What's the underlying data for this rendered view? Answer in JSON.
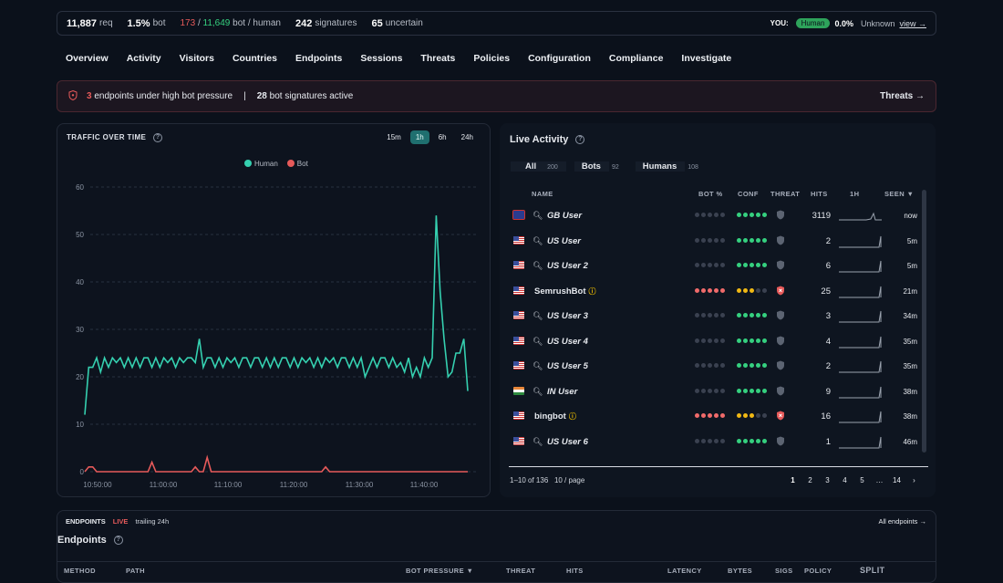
{
  "topbar": {
    "requests": "11,887",
    "requests_label": "req",
    "bot_pct": "1.5%",
    "bot_label": "bot",
    "bot_count": "173",
    "human_count": "11,649",
    "bot_human_label": "bot / human",
    "signatures": "242",
    "signatures_label": "signatures",
    "uncertain": "65",
    "uncertain_label": "uncertain",
    "you_label": "YOU:",
    "you_badge": "Human",
    "you_pct": "0.0%",
    "you_status": "Unknown",
    "view_link": "view →"
  },
  "nav": [
    "Overview",
    "Activity",
    "Visitors",
    "Countries",
    "Endpoints",
    "Sessions",
    "Threats",
    "Policies",
    "Configuration",
    "Compliance",
    "Investigate"
  ],
  "alert": {
    "count": "3",
    "text1": "endpoints under high bot pressure",
    "sep": "|",
    "sig_count": "28",
    "text2": "bot signatures active",
    "link": "Threats →"
  },
  "traffic": {
    "title": "TRAFFIC OVER TIME",
    "timeframes": [
      "15m",
      "1h",
      "6h",
      "24h"
    ],
    "active_timeframe": "1h",
    "legend": [
      "Human",
      "Bot"
    ]
  },
  "chart_data": {
    "type": "line",
    "x_ticks": [
      "10:50:00",
      "11:00:00",
      "11:10:00",
      "11:20:00",
      "11:30:00",
      "11:40:00"
    ],
    "ylim": [
      0,
      60
    ],
    "y_ticks": [
      "0",
      "10",
      "20",
      "30",
      "40",
      "50",
      "60"
    ],
    "grid": true,
    "legend_position": "top-center",
    "series": [
      {
        "name": "Human",
        "color": "#35d0b0",
        "values": [
          12,
          22,
          22,
          24,
          21,
          24,
          22,
          24,
          23,
          24,
          22,
          24,
          22,
          24,
          22,
          24,
          24,
          22,
          24,
          22,
          24,
          23,
          24,
          22,
          24,
          23,
          24,
          24,
          23,
          28,
          22,
          24,
          24,
          22,
          24,
          22,
          24,
          23,
          24,
          22,
          24,
          24,
          22,
          24,
          24,
          22,
          24,
          22,
          24,
          22,
          24,
          24,
          22,
          24,
          22,
          24,
          23,
          24,
          22,
          24,
          22,
          24,
          23,
          24,
          22,
          24,
          24,
          22,
          24,
          22,
          24,
          20,
          22,
          24,
          22,
          24,
          24,
          22,
          24,
          22,
          23,
          21,
          24,
          20,
          22,
          20,
          24,
          22,
          24,
          54,
          38,
          28,
          20,
          21,
          25,
          25,
          28,
          17
        ]
      },
      {
        "name": "Bot",
        "color": "#e65a5a",
        "values": [
          0,
          1,
          1,
          0,
          0,
          0,
          0,
          0,
          0,
          0,
          0,
          0,
          0,
          0,
          0,
          0,
          0,
          2,
          0,
          0,
          0,
          0,
          0,
          0,
          0,
          0,
          0,
          0,
          1,
          0,
          0,
          3,
          0,
          0,
          0,
          0,
          0,
          0,
          0,
          0,
          0,
          0,
          0,
          0,
          0,
          0,
          0,
          0,
          0,
          0,
          0,
          0,
          0,
          0,
          0,
          0,
          0,
          0,
          0,
          0,
          0,
          1,
          0,
          0,
          0,
          0,
          0,
          0,
          0,
          0,
          0,
          0,
          0,
          0,
          0,
          0,
          0,
          0,
          0,
          0,
          0,
          0,
          0,
          0,
          0,
          0,
          0,
          0,
          0,
          0,
          0,
          0,
          0,
          0,
          0,
          0,
          0,
          0
        ]
      }
    ]
  },
  "live": {
    "title": "Live Activity",
    "tabs": [
      {
        "label": "All",
        "count": "200"
      },
      {
        "label": "Bots",
        "count": "92"
      },
      {
        "label": "Humans",
        "count": "108"
      }
    ],
    "columns": {
      "name": "NAME",
      "bot": "BOT %",
      "conf": "CONF",
      "threat": "THREAT",
      "hits": "HITS",
      "h1": "1H",
      "seen": "SEEN ▼"
    },
    "rows": [
      {
        "flag": "gb",
        "name": "GB User",
        "bot": false,
        "hits": "3119",
        "seen": "now"
      },
      {
        "flag": "us",
        "name": "US User",
        "bot": false,
        "hits": "2",
        "seen": "5m"
      },
      {
        "flag": "us",
        "name": "US User 2",
        "bot": false,
        "hits": "6",
        "seen": "5m"
      },
      {
        "flag": "us",
        "name": "SemrushBot",
        "bot": true,
        "hits": "25",
        "seen": "21m"
      },
      {
        "flag": "us",
        "name": "US User 3",
        "bot": false,
        "hits": "3",
        "seen": "34m"
      },
      {
        "flag": "us",
        "name": "US User 4",
        "bot": false,
        "hits": "4",
        "seen": "35m"
      },
      {
        "flag": "us",
        "name": "US User 5",
        "bot": false,
        "hits": "2",
        "seen": "35m"
      },
      {
        "flag": "in",
        "name": "IN User",
        "bot": false,
        "hits": "9",
        "seen": "38m"
      },
      {
        "flag": "us",
        "name": "bingbot",
        "bot": true,
        "hits": "16",
        "seen": "38m"
      },
      {
        "flag": "us",
        "name": "US User 6",
        "bot": false,
        "hits": "1",
        "seen": "46m"
      }
    ],
    "footer": "1–10 of 136",
    "per_page": "10 / page",
    "pages": [
      "1",
      "2",
      "3",
      "4",
      "5",
      "…",
      "14",
      "›"
    ]
  },
  "endpoints": {
    "label": "ENDPOINTS",
    "live": "LIVE",
    "trailing": "trailing 24h",
    "all_link": "All endpoints →",
    "title": "Endpoints",
    "columns": [
      "METHOD",
      "PATH",
      "BOT PRESSURE ▼",
      "THREAT",
      "HITS",
      "LATENCY",
      "BYTES",
      "SIGS",
      "POLICY",
      "SPLIT"
    ]
  }
}
